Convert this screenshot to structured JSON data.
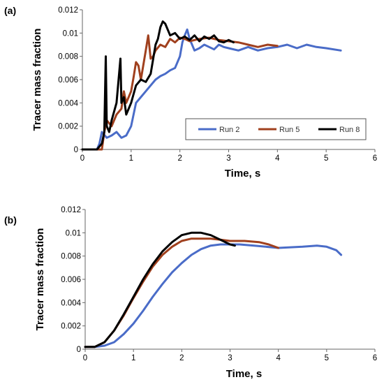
{
  "chart_data": [
    {
      "type": "line",
      "panel_label": "(a)",
      "xlabel": "Time, s",
      "ylabel": "Tracer  mass fraction",
      "xlim": [
        0,
        6
      ],
      "ylim": [
        0,
        0.012
      ],
      "xticks": [
        "0",
        "1",
        "2",
        "3",
        "4",
        "5",
        "6"
      ],
      "yticks": [
        "0",
        "0.002",
        "0.004",
        "0.006",
        "0.008",
        "0.01",
        "0.012"
      ],
      "legend": "bottom-right",
      "series": [
        {
          "name": "Run 2",
          "color": "#4a6cc8",
          "x": [
            0,
            0.3,
            0.35,
            0.4,
            0.5,
            0.6,
            0.7,
            0.8,
            0.9,
            1.0,
            1.05,
            1.1,
            1.2,
            1.3,
            1.4,
            1.5,
            1.6,
            1.7,
            1.8,
            1.9,
            2.0,
            2.05,
            2.1,
            2.15,
            2.2,
            2.3,
            2.4,
            2.5,
            2.6,
            2.7,
            2.8,
            2.9,
            3.0,
            3.2,
            3.4,
            3.6,
            3.8,
            4.0,
            4.2,
            4.4,
            4.6,
            4.8,
            5.0,
            5.3
          ],
          "y": [
            0,
            0,
            0.0005,
            0.0015,
            0.001,
            0.0012,
            0.0015,
            0.001,
            0.0012,
            0.002,
            0.003,
            0.004,
            0.0045,
            0.005,
            0.0055,
            0.006,
            0.0063,
            0.0065,
            0.0068,
            0.007,
            0.008,
            0.0092,
            0.0098,
            0.0103,
            0.0095,
            0.0085,
            0.0087,
            0.009,
            0.0088,
            0.0086,
            0.009,
            0.0088,
            0.0087,
            0.0085,
            0.0088,
            0.0085,
            0.0087,
            0.0088,
            0.009,
            0.0087,
            0.009,
            0.0088,
            0.0087,
            0.0085
          ]
        },
        {
          "name": "Run 5",
          "color": "#a0401e",
          "x": [
            0,
            0.4,
            0.45,
            0.5,
            0.6,
            0.7,
            0.8,
            0.85,
            0.9,
            0.95,
            1.0,
            1.05,
            1.1,
            1.15,
            1.2,
            1.3,
            1.35,
            1.4,
            1.45,
            1.5,
            1.6,
            1.7,
            1.8,
            1.9,
            2.0,
            2.1,
            2.2,
            2.4,
            2.6,
            2.8,
            3.0,
            3.2,
            3.4,
            3.6,
            3.8,
            4.0
          ],
          "y": [
            0,
            0,
            0.0015,
            0.0025,
            0.002,
            0.003,
            0.0035,
            0.005,
            0.004,
            0.0045,
            0.005,
            0.0062,
            0.0075,
            0.0072,
            0.006,
            0.0085,
            0.0098,
            0.0078,
            0.008,
            0.0085,
            0.009,
            0.0088,
            0.0095,
            0.0092,
            0.0096,
            0.0095,
            0.0093,
            0.0095,
            0.0096,
            0.0094,
            0.0093,
            0.0092,
            0.009,
            0.0088,
            0.009,
            0.0089
          ]
        },
        {
          "name": "Run 8",
          "color": "#000000",
          "x": [
            0,
            0.3,
            0.4,
            0.45,
            0.48,
            0.5,
            0.55,
            0.6,
            0.7,
            0.78,
            0.8,
            0.85,
            0.9,
            0.95,
            1.0,
            1.1,
            1.2,
            1.3,
            1.4,
            1.5,
            1.55,
            1.6,
            1.65,
            1.7,
            1.8,
            1.9,
            2.0,
            2.1,
            2.2,
            2.3,
            2.4,
            2.5,
            2.6,
            2.7,
            2.8,
            2.9,
            3.0,
            3.1
          ],
          "y": [
            0,
            0,
            0.0005,
            0.0015,
            0.008,
            0.002,
            0.0015,
            0.0025,
            0.004,
            0.0078,
            0.004,
            0.0045,
            0.003,
            0.0035,
            0.004,
            0.0055,
            0.006,
            0.0058,
            0.0065,
            0.009,
            0.0095,
            0.0105,
            0.011,
            0.0108,
            0.0098,
            0.01,
            0.0095,
            0.0097,
            0.0094,
            0.0098,
            0.0093,
            0.0097,
            0.0095,
            0.0098,
            0.0093,
            0.0092,
            0.0094,
            0.0092
          ]
        }
      ]
    },
    {
      "type": "line",
      "panel_label": "(b)",
      "xlabel": "Time, s",
      "ylabel": "Tracer  mass fraction",
      "xlim": [
        0,
        6
      ],
      "ylim": [
        0,
        0.012
      ],
      "xticks": [
        "0",
        "1",
        "2",
        "3",
        "4",
        "5",
        "6"
      ],
      "yticks": [
        "0",
        "0.002",
        "0.004",
        "0.006",
        "0.008",
        "0.01",
        "0.012"
      ],
      "series": [
        {
          "name": "Run 2",
          "color": "#4a6cc8",
          "x": [
            0,
            0.2,
            0.4,
            0.6,
            0.8,
            1.0,
            1.2,
            1.4,
            1.6,
            1.8,
            2.0,
            2.2,
            2.4,
            2.6,
            2.8,
            3.0,
            3.2,
            3.5,
            4.0,
            4.5,
            4.8,
            5.0,
            5.2,
            5.3
          ],
          "y": [
            0.0002,
            0.0002,
            0.0003,
            0.0006,
            0.0013,
            0.0022,
            0.0033,
            0.0045,
            0.0056,
            0.0066,
            0.0074,
            0.0081,
            0.0086,
            0.0089,
            0.009,
            0.009,
            0.009,
            0.0089,
            0.0087,
            0.0088,
            0.0089,
            0.0088,
            0.0085,
            0.0081
          ]
        },
        {
          "name": "Run 5",
          "color": "#a0401e",
          "x": [
            0,
            0.2,
            0.4,
            0.6,
            0.8,
            1.0,
            1.2,
            1.4,
            1.6,
            1.8,
            2.0,
            2.2,
            2.4,
            2.6,
            2.8,
            3.0,
            3.3,
            3.6,
            3.8,
            4.0
          ],
          "y": [
            0.0002,
            0.0002,
            0.0006,
            0.0016,
            0.0029,
            0.0044,
            0.0058,
            0.0071,
            0.0081,
            0.0088,
            0.0093,
            0.0095,
            0.0095,
            0.0095,
            0.0094,
            0.0093,
            0.0093,
            0.0092,
            0.009,
            0.0087
          ]
        },
        {
          "name": "Run 8",
          "color": "#000000",
          "x": [
            0,
            0.2,
            0.4,
            0.6,
            0.8,
            1.0,
            1.2,
            1.4,
            1.6,
            1.8,
            2.0,
            2.2,
            2.4,
            2.6,
            2.8,
            3.0,
            3.1
          ],
          "y": [
            0.0002,
            0.0002,
            0.0006,
            0.0016,
            0.003,
            0.0045,
            0.006,
            0.0073,
            0.0084,
            0.0092,
            0.0098,
            0.01,
            0.01,
            0.0098,
            0.0094,
            0.009,
            0.0089
          ]
        }
      ]
    }
  ]
}
